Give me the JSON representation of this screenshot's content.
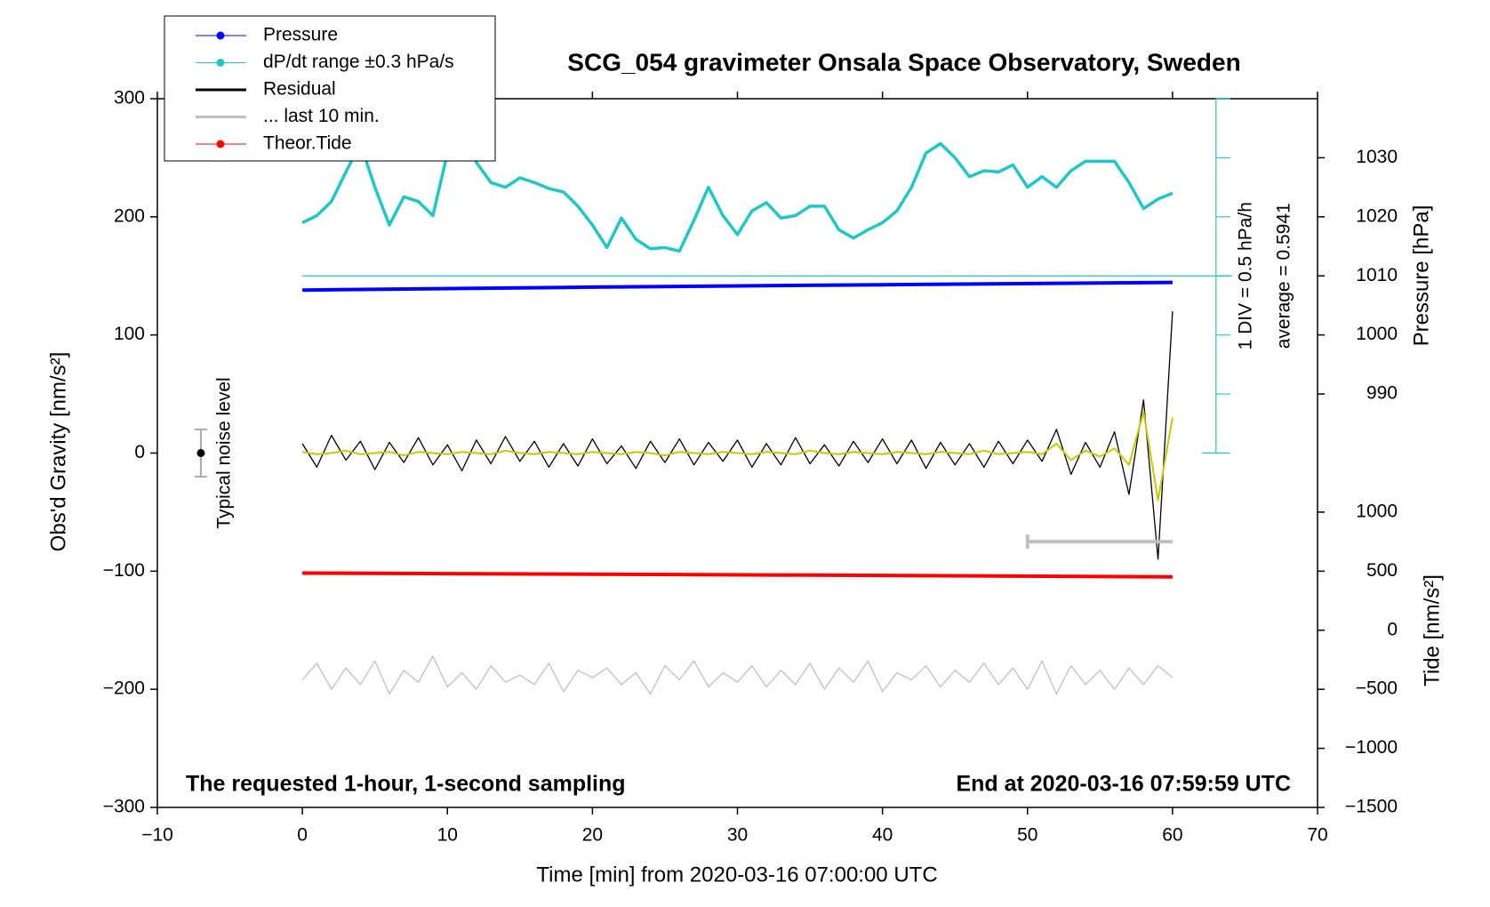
{
  "chart_data": {
    "type": "line",
    "title": "SCG_054 gravimeter Onsala Space Observatory, Sweden",
    "xlabel": "Time [min] from 2020-03-16 07:00:00 UTC",
    "ylabel": "Obs'd Gravity [nm/s²]",
    "y2label": "Pressure [hPa]",
    "y3label": "Tide [nm/s²]",
    "xlim": [
      -10,
      70
    ],
    "xticks": [
      {
        "value": -10,
        "label": "−10"
      },
      0,
      10,
      20,
      30,
      40,
      50,
      60,
      70
    ],
    "ylim": [
      -300,
      300
    ],
    "yticks": [
      {
        "value": -300,
        "label": "−300"
      },
      {
        "value": -200,
        "label": "−200"
      },
      {
        "value": -100,
        "label": "−100"
      },
      0,
      100,
      200,
      300
    ],
    "y2lim": [
      920,
      1040
    ],
    "y2ticks": [
      990,
      1000,
      1010,
      1020,
      1030
    ],
    "y3lim": [
      -1500,
      4500
    ],
    "y3ticks": [
      {
        "value": -1500,
        "label": "−1500"
      },
      {
        "value": -1000,
        "label": "−1000"
      },
      {
        "value": -500,
        "label": "−500"
      },
      0,
      500,
      1000
    ],
    "x": [
      0,
      1,
      2,
      3,
      4,
      5,
      6,
      7,
      8,
      9,
      10,
      11,
      12,
      13,
      14,
      15,
      16,
      17,
      18,
      19,
      20,
      21,
      22,
      23,
      24,
      25,
      26,
      27,
      28,
      29,
      30,
      31,
      32,
      33,
      34,
      35,
      36,
      37,
      38,
      39,
      40,
      41,
      42,
      43,
      44,
      45,
      46,
      47,
      48,
      49,
      50,
      51,
      52,
      53,
      54,
      55,
      56,
      57,
      58,
      59,
      60
    ],
    "series": [
      {
        "name": "Pressure",
        "color": "#0000ff",
        "axis": "y2",
        "marker": true,
        "x": [
          0,
          20,
          40,
          60
        ],
        "values": [
          1007.6,
          1008.1,
          1008.5,
          1008.9
        ]
      },
      {
        "name": "dP/dt range ±0.3 hPa/s",
        "color": "#1ec8c8",
        "axis": "y",
        "marker": true,
        "values": [
          195,
          201,
          213,
          238,
          262,
          225,
          193,
          217,
          213,
          201,
          254,
          266,
          246,
          229,
          225,
          233,
          229,
          224,
          221,
          209,
          193,
          174,
          199,
          181,
          173,
          174,
          171,
          197,
          225,
          201,
          185,
          205,
          212,
          199,
          201,
          209,
          209,
          189,
          182,
          189,
          195,
          205,
          225,
          254,
          262,
          250,
          234,
          239,
          238,
          244,
          225,
          234,
          225,
          239,
          247,
          247,
          247,
          229,
          207,
          215,
          220
        ]
      },
      {
        "name": "Residual",
        "color": "#000000",
        "axis": "y",
        "marker": false,
        "values": [
          8,
          -12,
          15,
          -6,
          10,
          -14,
          9,
          -8,
          13,
          -10,
          7,
          -15,
          11,
          -9,
          14,
          -7,
          10,
          -12,
          8,
          -11,
          12,
          -9,
          6,
          -13,
          10,
          -8,
          12,
          -10,
          9,
          -7,
          11,
          -12,
          8,
          -10,
          13,
          -9,
          7,
          -11,
          10,
          -8,
          12,
          -9,
          11,
          -13,
          9,
          -10,
          8,
          -12,
          10,
          -9,
          11,
          -7,
          20,
          -18,
          9,
          -12,
          18,
          -35,
          45,
          -90,
          120
        ]
      },
      {
        "name": "... last 10 min.",
        "color": "#c0c0c0",
        "axis": "y",
        "marker": false,
        "values": [
          -192,
          -178,
          -200,
          -182,
          -196,
          -176,
          -204,
          -184,
          -194,
          -172,
          -198,
          -186,
          -200,
          -180,
          -194,
          -188,
          -196,
          -178,
          -202,
          -184,
          -190,
          -182,
          -196,
          -186,
          -204,
          -180,
          -192,
          -176,
          -198,
          -186,
          -194,
          -180,
          -198,
          -184,
          -196,
          -178,
          -200,
          -182,
          -194,
          -176,
          -202,
          -186,
          -192,
          -180,
          -198,
          -184,
          -194,
          -178,
          -196,
          -182,
          -200,
          -176,
          -204,
          -180,
          -196,
          -184,
          -200,
          -182,
          -196,
          -180,
          -190
        ]
      },
      {
        "name": "Theor.Tide",
        "color": "#ff0000",
        "axis": "y3",
        "marker": true,
        "x": [
          0,
          20,
          40,
          60
        ],
        "values": [
          484,
          474,
          464,
          452
        ]
      }
    ],
    "filtered": {
      "color": "#c8c800",
      "values": [
        1,
        -1,
        0,
        2,
        -1,
        0,
        1,
        -2,
        1,
        0,
        -1,
        1,
        0,
        -1,
        2,
        0,
        -1,
        1,
        0,
        -1,
        1,
        0,
        -1,
        1,
        0,
        -2,
        1,
        0,
        -1,
        1,
        0,
        -1,
        1,
        0,
        -1,
        2,
        0,
        -1,
        1,
        0,
        -1,
        1,
        0,
        -1,
        1,
        0,
        -1,
        2,
        -1,
        0,
        1,
        -1,
        8,
        -6,
        2,
        -3,
        4,
        -10,
        35,
        -40,
        30
      ]
    },
    "last10_bar": {
      "x": [
        50,
        60
      ],
      "y": -75,
      "color": "#c0c0c0"
    },
    "noise_level": {
      "label": "Typical noise level",
      "x": -7,
      "y": 0,
      "error": 20
    },
    "dpdt_axis": {
      "x": 63,
      "average_line": 150,
      "ticks": [
        0,
        50,
        100,
        150,
        200,
        250,
        300
      ],
      "scale_label": "1 DIV = 0.5 hPa/h",
      "average_label": "average = 0.5941"
    },
    "annotations": [
      "The requested 1-hour, 1-second sampling",
      "End at 2020-03-16 07:59:59 UTC"
    ]
  }
}
